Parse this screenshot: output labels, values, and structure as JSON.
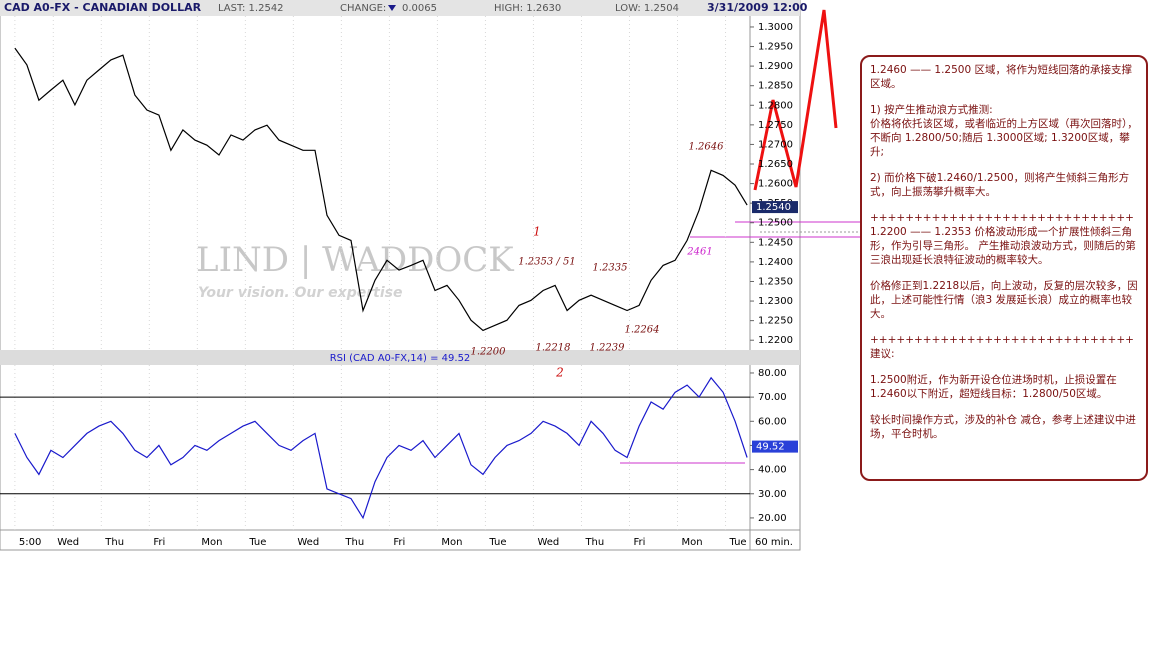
{
  "chart_data": [
    {
      "type": "line",
      "title": "CAD A0-FX - CANADIAN DOLLAR",
      "stats": [
        "LAST: 1.2542",
        "CHANGE:",
        "0.0065",
        "HIGH: 1.2630",
        "LOW: 1.2504"
      ],
      "date": "3/31/2009 12:00",
      "watermark": [
        "LIND | WADDOCK",
        "Your vision. Our expertise"
      ],
      "color": "#000000",
      "x": [
        0,
        0.25,
        0.5,
        0.75,
        1,
        1.25,
        1.5,
        1.75,
        2,
        2.25,
        2.5,
        2.75,
        3,
        3.25,
        3.5,
        3.75,
        4,
        4.25,
        4.5,
        4.75,
        5,
        5.25,
        5.5,
        5.75,
        6,
        6.25,
        6.5,
        6.75,
        7,
        7.25,
        7.5,
        7.75,
        8,
        8.25,
        8.5,
        8.75,
        9,
        9.25,
        9.5,
        9.75,
        10,
        10.25,
        10.5,
        10.75,
        11,
        11.25,
        11.5,
        11.75,
        12,
        12.25,
        12.5,
        12.75,
        13,
        13.25,
        13.5,
        13.75,
        14,
        14.25,
        14.5,
        14.75,
        15,
        15.25
      ],
      "values": [
        1.2946,
        1.2903,
        1.2813,
        1.2839,
        1.2864,
        1.2801,
        1.2864,
        1.289,
        1.2916,
        1.2928,
        1.2826,
        1.2788,
        1.2775,
        1.2685,
        1.2737,
        1.2711,
        1.2698,
        1.2673,
        1.2724,
        1.2711,
        1.2737,
        1.2749,
        1.2711,
        1.2698,
        1.2685,
        1.2685,
        1.2519,
        1.2468,
        1.2455,
        1.2276,
        1.2353,
        1.2404,
        1.2379,
        1.2391,
        1.2404,
        1.2327,
        1.234,
        1.2302,
        1.2251,
        1.2225,
        1.2238,
        1.2251,
        1.2289,
        1.2302,
        1.2327,
        1.234,
        1.2276,
        1.2302,
        1.2315,
        1.2302,
        1.2289,
        1.2276,
        1.2289,
        1.2353,
        1.2391,
        1.2404,
        1.2455,
        1.2532,
        1.2634,
        1.2621,
        1.2596,
        1.2545
      ],
      "xlim": [
        -0.31,
        15.31
      ],
      "ylim": [
        1.2175,
        1.3028
      ],
      "yticks": [
        {
          "value": 1.22,
          "label": "1.2200"
        },
        {
          "value": 1.225,
          "label": "1.2250"
        },
        {
          "value": 1.23,
          "label": "1.2300"
        },
        {
          "value": 1.235,
          "label": "1.2350"
        },
        {
          "value": 1.24,
          "label": "1.2400"
        },
        {
          "value": 1.245,
          "label": "1.2450"
        },
        {
          "value": 1.25,
          "label": "1.2500"
        },
        {
          "value": 1.255,
          "label": "1.2550"
        },
        {
          "value": 1.26,
          "label": "1.2600"
        },
        {
          "value": 1.265,
          "label": "1.2650"
        },
        {
          "value": 1.27,
          "label": "1.2700"
        },
        {
          "value": 1.275,
          "label": "1.2750"
        },
        {
          "value": 1.28,
          "label": "1.2800"
        },
        {
          "value": 1.285,
          "label": "1.2850"
        },
        {
          "value": 1.29,
          "label": "1.2900"
        },
        {
          "value": 1.295,
          "label": "1.2950"
        },
        {
          "value": 1.3,
          "label": "1.3000"
        }
      ],
      "last_marker": {
        "value": 1.254,
        "label": "1.2540"
      },
      "annotations": [
        "1",
        "2",
        "1.2646",
        "1.2353 / 51",
        "1.2335",
        "1.2264",
        "1.2200",
        "1.2218",
        "1.2239",
        "2461"
      ]
    },
    {
      "type": "line",
      "title": "RSI (CAD A0-FX,14) = 49.52",
      "color": "#1a1acc",
      "x": [
        0,
        0.25,
        0.5,
        0.75,
        1,
        1.25,
        1.5,
        1.75,
        2,
        2.25,
        2.5,
        2.75,
        3,
        3.25,
        3.5,
        3.75,
        4,
        4.25,
        4.5,
        4.75,
        5,
        5.25,
        5.5,
        5.75,
        6,
        6.25,
        6.5,
        6.75,
        7,
        7.25,
        7.5,
        7.75,
        8,
        8.25,
        8.5,
        8.75,
        9,
        9.25,
        9.5,
        9.75,
        10,
        10.25,
        10.5,
        10.75,
        11,
        11.25,
        11.5,
        11.75,
        12,
        12.25,
        12.5,
        12.75,
        13,
        13.25,
        13.5,
        13.75,
        14,
        14.25,
        14.5,
        14.75,
        15,
        15.25
      ],
      "values": [
        55,
        45,
        38,
        48,
        45,
        50,
        55,
        58,
        60,
        55,
        48,
        45,
        50,
        42,
        45,
        50,
        48,
        52,
        55,
        58,
        60,
        55,
        50,
        48,
        52,
        55,
        32,
        30,
        28,
        20,
        35,
        45,
        50,
        48,
        52,
        45,
        50,
        55,
        42,
        38,
        45,
        50,
        52,
        55,
        60,
        58,
        55,
        50,
        60,
        55,
        48,
        45,
        58,
        68,
        65,
        72,
        75,
        70,
        78,
        72,
        60,
        45
      ],
      "xlim": [
        -0.31,
        15.31
      ],
      "xticks": [
        {
          "value": 0,
          "label": "5:00"
        },
        {
          "value": 0.8,
          "label": "Wed"
        },
        {
          "value": 1.8,
          "label": "Thu"
        },
        {
          "value": 2.8,
          "label": "Fri"
        },
        {
          "value": 3.8,
          "label": "Mon"
        },
        {
          "value": 4.8,
          "label": "Tue"
        },
        {
          "value": 5.8,
          "label": "Wed"
        },
        {
          "value": 6.8,
          "label": "Thu"
        },
        {
          "value": 7.8,
          "label": "Fri"
        },
        {
          "value": 8.8,
          "label": "Mon"
        },
        {
          "value": 9.8,
          "label": "Tue"
        },
        {
          "value": 10.8,
          "label": "Wed"
        },
        {
          "value": 11.8,
          "label": "Thu"
        },
        {
          "value": 12.8,
          "label": "Fri"
        },
        {
          "value": 13.8,
          "label": "Mon"
        },
        {
          "value": 14.8,
          "label": "Tue"
        }
      ],
      "x_label": "60 min.",
      "ylim": [
        15,
        83.3
      ],
      "yticks": [
        {
          "value": 20,
          "label": "20.00"
        },
        {
          "value": 30,
          "label": "30.00"
        },
        {
          "value": 40,
          "label": "40.00"
        },
        {
          "value": 50,
          "label": "50.00"
        },
        {
          "value": 60,
          "label": "60.00"
        },
        {
          "value": 70,
          "label": "70.00"
        },
        {
          "value": 80,
          "label": "80.00"
        }
      ],
      "hlines": [
        70,
        30
      ],
      "last_marker": {
        "value": 49.52,
        "label": "49.52"
      }
    }
  ],
  "notes": [
    "1.2460 —— 1.2500 区域，将作为短线回落的承接支撑区域。",
    "1) 按产生推动浪方式推测:",
    "价格将依托该区域，或者临近的上方区域（再次回落时），不断向 1.2800/50;随后 1.3000区域; 1.3200区域，攀升;",
    "2) 而价格下破1.2460/1.2500，则将产生倾斜三角形方式，向上振荡攀升概率大。",
    "++++++++++++++++++++++++++++++",
    "1.2200 —— 1.2353 价格波动形成一个扩展性倾斜三角形，作为引导三角形。 产生推动浪波动方式，则随后的第三浪出现延长浪特征波动的概率较大。",
    "价格修正到1.2218以后，向上波动，反复的层次较多，因此，上述可能性行情（浪3 发展延长浪）成立的概率也较大。",
    "++++++++++++++++++++++++++++++",
    "建议:",
    "1.2500附近，作为新开设仓位进场时机，止损设置在1.2460以下附近，超短线目标：1.2800/50区域。",
    "较长时间操作方式，涉及的补仓 减仓，参考上述建议中进场，平仓时机。"
  ]
}
